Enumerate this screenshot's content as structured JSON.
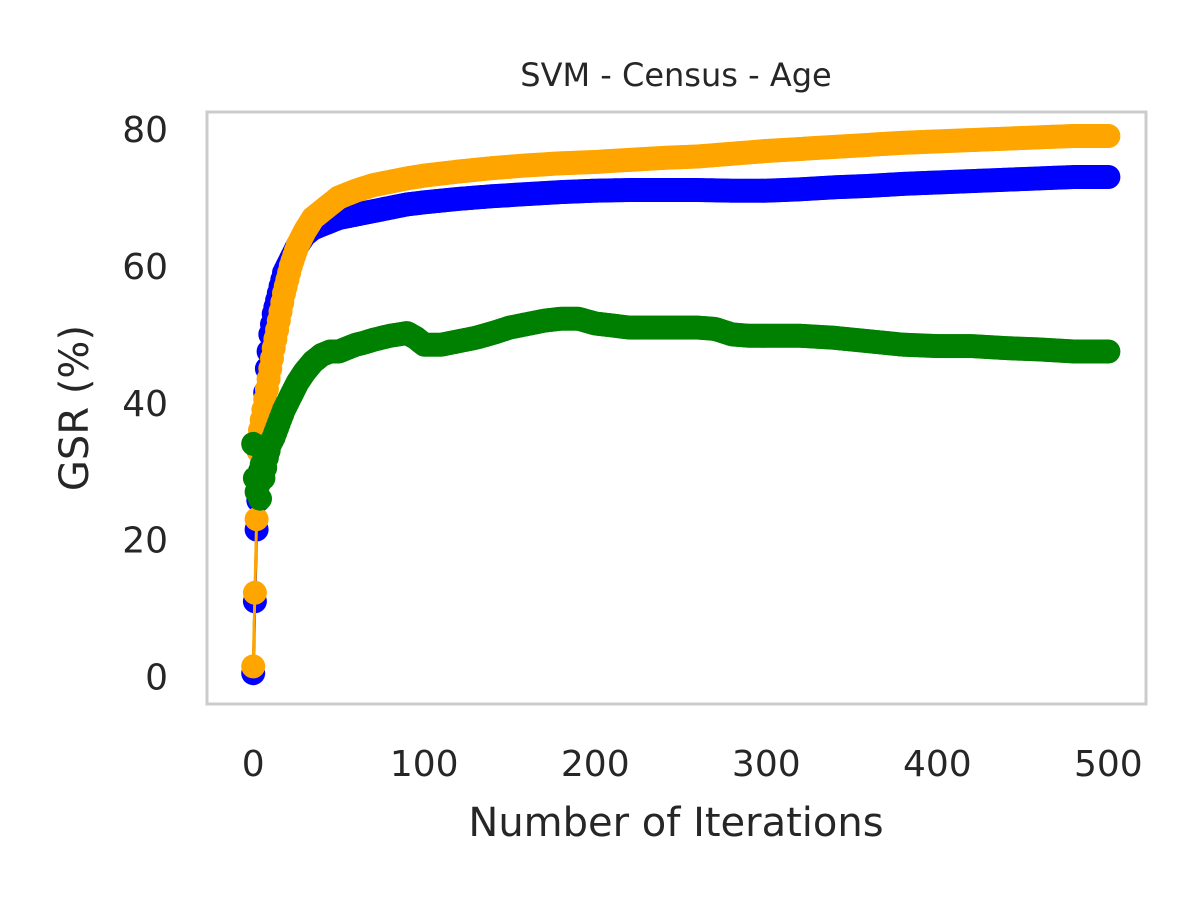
{
  "chart_data": {
    "type": "line",
    "title": "SVM - Census - Age",
    "xlabel": "Number of Iterations",
    "ylabel": "GSR (%)",
    "xlim": [
      -27,
      522
    ],
    "ylim": [
      -4,
      82.5
    ],
    "xticks": [
      0,
      100,
      200,
      300,
      400,
      500
    ],
    "yticks": [
      0,
      20,
      40,
      60,
      80
    ],
    "grid": false,
    "legend": "none",
    "frame_color": "#cccccc",
    "series": [
      {
        "color": "#0000ff",
        "x": [
          0,
          2,
          4,
          6,
          8,
          10,
          12,
          15,
          18,
          22,
          26,
          30,
          35,
          40,
          45,
          50,
          60,
          70,
          80,
          90,
          100,
          120,
          140,
          160,
          180,
          200,
          220,
          240,
          260,
          280,
          300,
          320,
          340,
          360,
          380,
          400,
          420,
          440,
          460,
          480,
          500
        ],
        "y": [
          0.5,
          21.5,
          30,
          38,
          45,
          50,
          53,
          56,
          59,
          61,
          63,
          64.5,
          65.5,
          66,
          66.5,
          67,
          67.5,
          68,
          68.5,
          69,
          69.3,
          69.8,
          70.2,
          70.5,
          70.8,
          71,
          71.1,
          71.1,
          71.1,
          71,
          71,
          71.2,
          71.5,
          71.7,
          72,
          72.2,
          72.4,
          72.6,
          72.8,
          73,
          73
        ]
      },
      {
        "color": "#ffa500",
        "x": [
          0,
          2,
          3,
          4,
          6,
          8,
          10,
          12,
          15,
          18,
          22,
          26,
          30,
          35,
          40,
          45,
          50,
          60,
          70,
          80,
          90,
          100,
          120,
          140,
          160,
          180,
          200,
          220,
          240,
          260,
          280,
          300,
          320,
          340,
          360,
          380,
          400,
          420,
          440,
          460,
          480,
          500
        ],
        "y": [
          1.5,
          23,
          33,
          36,
          39,
          42,
          45,
          48,
          52,
          56,
          60,
          63,
          65,
          67,
          68,
          69,
          70,
          71,
          71.8,
          72.3,
          72.8,
          73.2,
          73.8,
          74.3,
          74.7,
          75,
          75.2,
          75.5,
          75.8,
          76,
          76.4,
          76.8,
          77.1,
          77.4,
          77.7,
          78,
          78.2,
          78.4,
          78.6,
          78.8,
          79,
          79
        ]
      },
      {
        "color": "#008000",
        "x": [
          0,
          1,
          2,
          3,
          4,
          5,
          6,
          8,
          10,
          12,
          15,
          18,
          22,
          26,
          30,
          35,
          40,
          45,
          50,
          55,
          60,
          65,
          70,
          75,
          80,
          85,
          90,
          95,
          100,
          110,
          120,
          130,
          140,
          150,
          160,
          170,
          180,
          190,
          200,
          210,
          220,
          230,
          240,
          250,
          260,
          270,
          280,
          290,
          300,
          320,
          340,
          360,
          380,
          400,
          420,
          440,
          460,
          480,
          500
        ],
        "y": [
          34,
          29,
          27,
          28,
          26,
          31,
          29,
          32,
          34,
          35,
          37,
          39,
          41,
          43,
          44.5,
          46,
          47,
          47.5,
          47.5,
          48,
          48.5,
          48.8,
          49.2,
          49.5,
          49.8,
          50,
          50.2,
          49.5,
          48.5,
          48.5,
          49,
          49.5,
          50.2,
          51,
          51.5,
          52,
          52.3,
          52.3,
          51.6,
          51.3,
          51,
          51,
          51,
          51,
          51,
          50.8,
          50,
          49.8,
          49.8,
          49.8,
          49.5,
          49,
          48.5,
          48.3,
          48.3,
          48,
          47.8,
          47.5,
          47.5
        ]
      }
    ]
  }
}
